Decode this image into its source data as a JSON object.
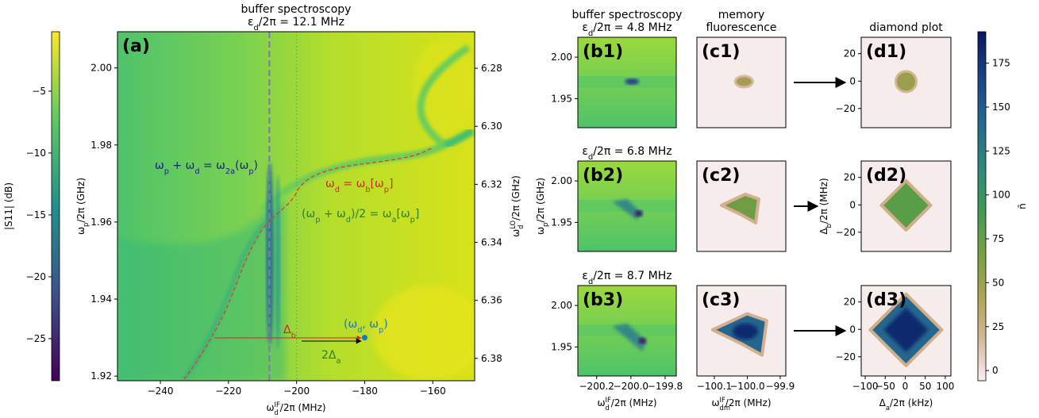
{
  "chart_data": [
    {
      "type": "colorbar",
      "label": "|S11| (dB)",
      "ylim": [
        -28.4,
        -0.2
      ],
      "yticks": [
        {
          "value": -5,
          "label": "−5"
        },
        {
          "value": -10,
          "label": "−10"
        },
        {
          "value": -15,
          "label": "−15"
        },
        {
          "value": -20,
          "label": "−20"
        },
        {
          "value": -25,
          "label": "−25"
        }
      ]
    },
    {
      "type": "heatmap",
      "panel_label": "(a)",
      "title": [
        "buffer spectroscopy",
        [
          "ε",
          {
            "sub": "d"
          },
          "/2π = 12.1 MHz"
        ]
      ],
      "xlabel": [
        "ω",
        {
          "sub": "d",
          "sup": "IF"
        },
        "/2π (MHz)"
      ],
      "ylabel": [
        "ω",
        {
          "sub": "p"
        },
        "/2π (GHz)"
      ],
      "y2label": [
        "ω",
        {
          "sub": "d",
          "sup": "LO"
        },
        "/2π (GHz)"
      ],
      "xlim": [
        -252.6,
        -147.7
      ],
      "xticks": [
        {
          "value": -240,
          "label": "−240"
        },
        {
          "value": -220,
          "label": "−220"
        },
        {
          "value": -200,
          "label": "−200"
        },
        {
          "value": -180,
          "label": "−180"
        },
        {
          "value": -160,
          "label": "−160"
        }
      ],
      "ylim": [
        1.9188,
        2.0094
      ],
      "yticks": [
        1.92,
        1.94,
        1.96,
        1.98,
        {
          "value": 2.0,
          "label": "2.00"
        }
      ],
      "y2lim": [
        6.3877,
        6.2674
      ],
      "y2ticks": [
        6.28,
        {
          "value": 6.3,
          "label": "6.30"
        },
        6.32,
        6.34,
        6.36,
        6.38
      ],
      "vlines": [
        -208,
        -200
      ],
      "point": {
        "x": -180,
        "y": 1.93
      },
      "annotations": [
        [
          "ω",
          {
            "sub": "p"
          },
          " + ω",
          {
            "sub": "d"
          },
          " = ω",
          {
            "sub": "2a"
          },
          "(ω",
          {
            "sub": "p"
          },
          ")"
        ],
        [
          "ω",
          {
            "sub": "d"
          },
          " = ω",
          {
            "sub": "b"
          },
          "[ω",
          {
            "sub": "p"
          },
          "]"
        ],
        [
          "(ω",
          {
            "sub": "p"
          },
          " + ω",
          {
            "sub": "d"
          },
          ")/2 = ω",
          {
            "sub": "a"
          },
          "[ω",
          {
            "sub": "p"
          },
          "]"
        ],
        [
          "Δ",
          {
            "sub": "b"
          }
        ],
        [
          "2Δ",
          {
            "sub": "a"
          }
        ],
        [
          "(ω",
          {
            "sub": "d"
          },
          ", ω",
          {
            "sub": "p"
          },
          ")"
        ]
      ]
    },
    {
      "type": "heatmap",
      "panel_label": "(b1)",
      "title": [
        "buffer spectroscopy",
        [
          "ε",
          {
            "sub": "d"
          },
          "/2π = 4.8 MHz"
        ]
      ],
      "xlim": [
        -200.31,
        -199.735
      ],
      "ylim": [
        1.915,
        2.024
      ],
      "yticks": [
        1.95,
        {
          "value": 2.0,
          "label": "2.00"
        }
      ]
    },
    {
      "type": "heatmap",
      "panel_label": "(c1)",
      "title": [
        "memory",
        "fluorescence"
      ],
      "xlim": [
        -100.153,
        -99.883
      ]
    },
    {
      "type": "heatmap",
      "panel_label": "(d1)",
      "title": [
        "diamond plot"
      ],
      "xlim": [
        -110,
        114
      ],
      "ylim": [
        -34,
        32
      ],
      "yticks": [
        {
          "value": -20,
          "label": "−20"
        },
        0,
        20
      ]
    },
    {
      "type": "heatmap",
      "panel_label": "(b2)",
      "title": [
        [
          "ε",
          {
            "sub": "d"
          },
          "/2π = 6.8 MHz"
        ]
      ],
      "ylabel": [
        "ω",
        {
          "sub": "p"
        },
        "/2π (GHz)"
      ],
      "xlim": [
        -200.31,
        -199.735
      ],
      "ylim": [
        1.915,
        2.024
      ],
      "yticks": [
        1.95,
        {
          "value": 2.0,
          "label": "2.00"
        }
      ]
    },
    {
      "type": "heatmap",
      "panel_label": "(c2)",
      "xlim": [
        -100.153,
        -99.883
      ]
    },
    {
      "type": "heatmap",
      "panel_label": "(d2)",
      "ylabel": [
        "Δ",
        {
          "sub": "b"
        },
        "/2π (MHz)"
      ],
      "xlim": [
        -110,
        114
      ],
      "ylim": [
        -34,
        32
      ],
      "yticks": [
        {
          "value": -20,
          "label": "−20"
        },
        0,
        20
      ]
    },
    {
      "type": "heatmap",
      "panel_label": "(b3)",
      "title": [
        [
          "ε",
          {
            "sub": "d"
          },
          "/2π = 8.7 MHz"
        ]
      ],
      "xlabel": [
        "ω",
        {
          "sub": "d",
          "sup": "IF"
        },
        "/2π (MHz)"
      ],
      "xlim": [
        -200.31,
        -199.735
      ],
      "xticks": [
        {
          "value": -200.2,
          "label": "−200.2"
        },
        {
          "value": -200.0,
          "label": "−200.0"
        },
        {
          "value": -199.8,
          "label": "−199.8"
        }
      ],
      "ylim": [
        1.915,
        2.024
      ],
      "yticks": [
        1.95,
        {
          "value": 2.0,
          "label": "2.00"
        }
      ]
    },
    {
      "type": "heatmap",
      "panel_label": "(c3)",
      "xlabel": [
        "ω",
        {
          "sub": "dm",
          "sup": "IF"
        },
        "/2π (MHz)"
      ],
      "xlim": [
        -100.153,
        -99.883
      ],
      "xticks": [
        {
          "value": -100.1,
          "label": "−100.1"
        },
        {
          "value": -100.0,
          "label": "−100.0"
        },
        {
          "value": -99.9,
          "label": "−99.9"
        }
      ]
    },
    {
      "type": "heatmap",
      "panel_label": "(d3)",
      "xlabel": [
        "Δ",
        {
          "sub": "a"
        },
        "/2π (kHz)"
      ],
      "xlim": [
        -110,
        114
      ],
      "xticks": [
        {
          "value": -100,
          "label": "−100"
        },
        {
          "value": -50,
          "label": "−50"
        },
        0,
        50,
        100
      ],
      "ylim": [
        -34,
        32
      ],
      "yticks": [
        {
          "value": -20,
          "label": "−20"
        },
        0,
        20
      ]
    },
    {
      "type": "colorbar",
      "label": "n̄",
      "ylim": [
        -5.8,
        192.9
      ],
      "yticks": [
        0,
        25,
        50,
        75,
        100,
        125,
        150,
        175
      ]
    }
  ]
}
